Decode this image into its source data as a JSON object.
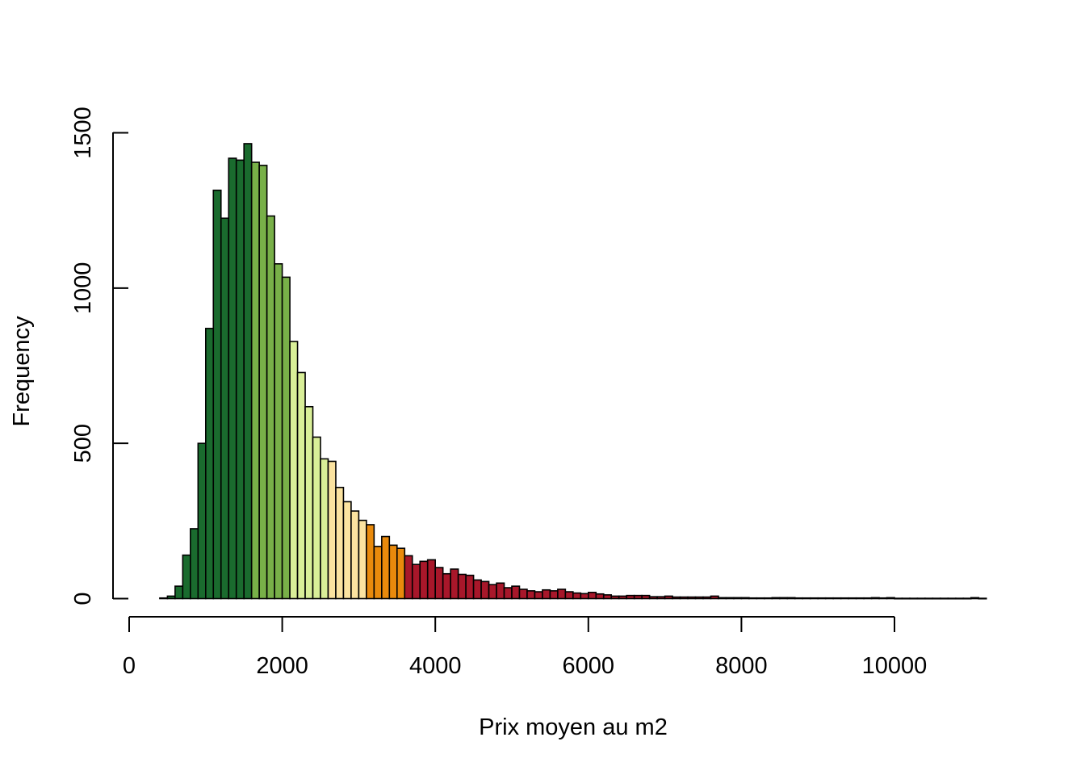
{
  "chart_data": {
    "type": "bar",
    "title": "",
    "xlabel": "Prix moyen au m2",
    "ylabel": "Frequency",
    "bin_width": 100,
    "xlim": [
      0,
      11000
    ],
    "ylim": [
      0,
      1500
    ],
    "x_ticks": [
      "0",
      "2000",
      "4000",
      "6000",
      "8000",
      "10000"
    ],
    "y_ticks": [
      "0",
      "500",
      "1000",
      "1500"
    ],
    "grid": false,
    "legend": "none",
    "color_classes": [
      {
        "from": 0,
        "to": 1600,
        "color": "#1a6b2e"
      },
      {
        "from": 1600,
        "to": 2100,
        "color": "#78b048"
      },
      {
        "from": 2100,
        "to": 2600,
        "color": "#d9ef98"
      },
      {
        "from": 2600,
        "to": 3100,
        "color": "#fbe3a0"
      },
      {
        "from": 3100,
        "to": 3600,
        "color": "#e98a0c"
      },
      {
        "from": 3600,
        "to": 11200,
        "color": "#a8172a"
      }
    ],
    "bins_start": [
      400,
      500,
      600,
      700,
      800,
      900,
      1000,
      1100,
      1200,
      1300,
      1400,
      1500,
      1600,
      1700,
      1800,
      1900,
      2000,
      2100,
      2200,
      2300,
      2400,
      2500,
      2600,
      2700,
      2800,
      2900,
      3000,
      3100,
      3200,
      3300,
      3400,
      3500,
      3600,
      3700,
      3800,
      3900,
      4000,
      4100,
      4200,
      4300,
      4400,
      4500,
      4600,
      4700,
      4800,
      4900,
      5000,
      5100,
      5200,
      5300,
      5400,
      5500,
      5600,
      5700,
      5800,
      5900,
      6000,
      6100,
      6200,
      6300,
      6400,
      6500,
      6600,
      6700,
      6800,
      6900,
      7000,
      7100,
      7200,
      7300,
      7400,
      7500,
      7600,
      7700,
      7800,
      7900,
      8000,
      8100,
      8200,
      8300,
      8400,
      8500,
      8600,
      8700,
      8800,
      8900,
      9000,
      9100,
      9200,
      9300,
      9400,
      9500,
      9600,
      9700,
      9800,
      9900,
      10000,
      10100,
      10200,
      10300,
      10400,
      10500,
      10600,
      10700,
      10800,
      10900,
      11000,
      11100
    ],
    "values": [
      2,
      8,
      40,
      140,
      225,
      500,
      870,
      1315,
      1225,
      1418,
      1412,
      1465,
      1405,
      1395,
      1232,
      1078,
      1035,
      828,
      728,
      618,
      520,
      450,
      442,
      358,
      312,
      282,
      252,
      238,
      168,
      200,
      172,
      162,
      138,
      110,
      120,
      125,
      100,
      80,
      95,
      78,
      75,
      60,
      55,
      45,
      50,
      35,
      40,
      30,
      25,
      22,
      28,
      25,
      30,
      22,
      18,
      16,
      20,
      15,
      12,
      8,
      8,
      10,
      10,
      10,
      6,
      6,
      8,
      5,
      5,
      5,
      5,
      5,
      8,
      3,
      3,
      3,
      3,
      2,
      2,
      2,
      3,
      3,
      3,
      2,
      2,
      2,
      2,
      2,
      2,
      2,
      2,
      2,
      2,
      3,
      2,
      3,
      1,
      1,
      1,
      1,
      1,
      1,
      1,
      1,
      1,
      1,
      3,
      1
    ]
  }
}
